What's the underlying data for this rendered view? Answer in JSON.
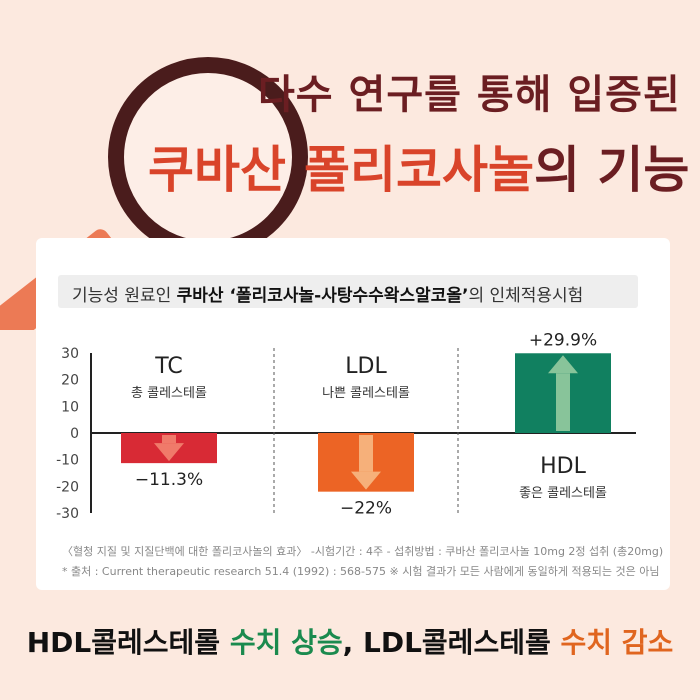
{
  "headline": {
    "line1": "다수 연구를 통해 입증된",
    "keyword": "쿠바산",
    "line2_main": "폴리코사놀",
    "line2_rest": "의 기능"
  },
  "subtitle": {
    "prefix": "기능성 원료인 ",
    "bold": "쿠바산 ‘폴리코사놀-사탕수수왁스알코올’",
    "suffix": "의 인체적용시험"
  },
  "chart_data": {
    "type": "bar",
    "categories": [
      "TC",
      "LDL",
      "HDL"
    ],
    "category_subtitles": [
      "총 콜레스테롤",
      "나쁜 콜레스테롤",
      "좋은 콜레스테롤"
    ],
    "values": [
      -11.3,
      -22,
      29.9
    ],
    "data_labels": [
      "−11.3%",
      "−22%",
      "+29.9%"
    ],
    "y_ticks": [
      "30",
      "20",
      "10",
      "0",
      "-10",
      "-20",
      "-30"
    ],
    "ylim": [
      -30,
      30
    ],
    "colors": [
      "#d82a35",
      "#ec6425",
      "#118060"
    ],
    "arrow_colors": [
      "#f07a6a",
      "#f6b07a",
      "#88c49a"
    ],
    "grid": false
  },
  "footnotes": {
    "line1": "〈혈청 지질 및 지질단백에 대한 폴리코사놀의 효과〉 -시험기간 : 4주  - 섭취방법 : 쿠바산 폴리코사놀 10mg 2정 섭취 (총20mg)",
    "line2": "* 출처 : Current therapeutic research 51.4 (1992) : 568-575   ※ 시험 결과가 모든 사람에게 동일하게 적용되는 것은 아님"
  },
  "bottom": {
    "part1": "HDL콜레스테롤 ",
    "part2": "수치 상승",
    "part3": ", LDL콜레스테롤 ",
    "part4": "수치 감소"
  }
}
